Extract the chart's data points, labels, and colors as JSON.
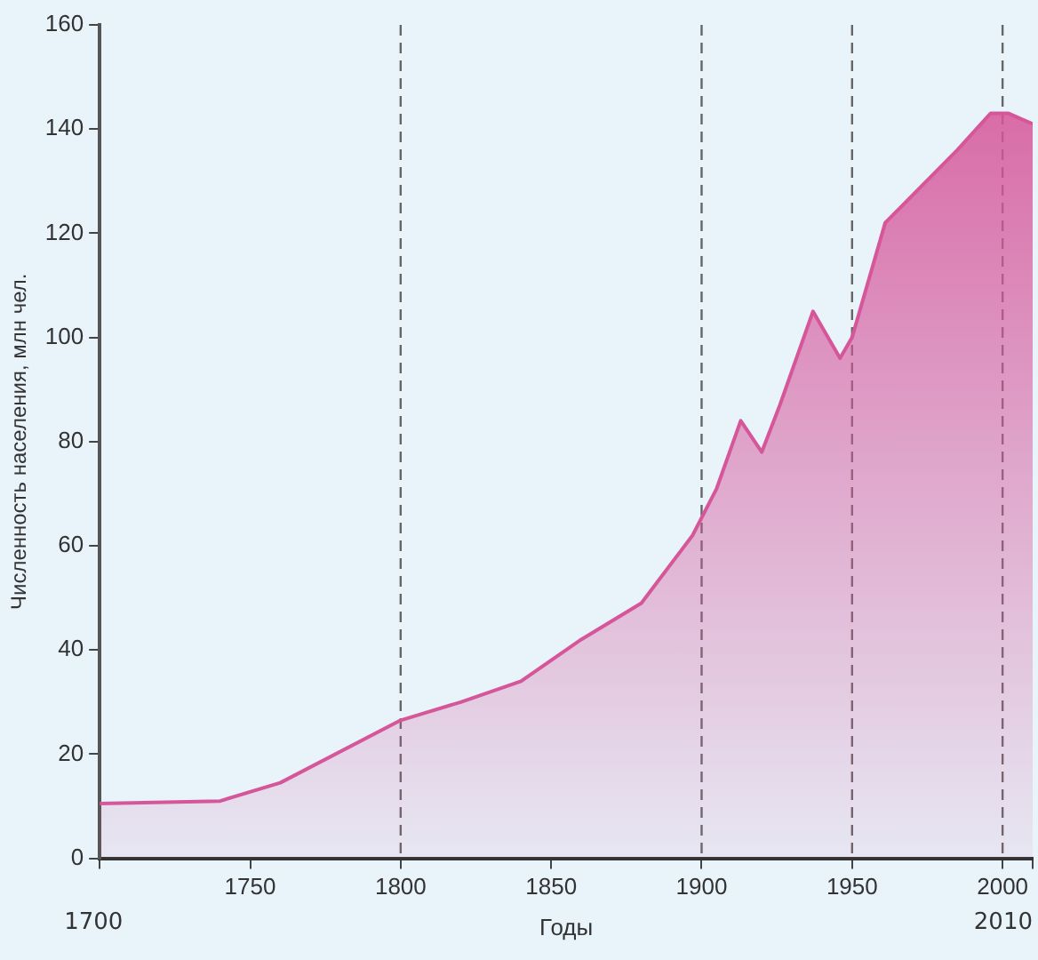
{
  "chart_data": {
    "type": "area",
    "xlabel": "Годы",
    "ylabel": "Численность населения, млн чел.",
    "x": [
      1700,
      1740,
      1760,
      1800,
      1820,
      1840,
      1860,
      1880,
      1897,
      1905,
      1913,
      1920,
      1926,
      1937,
      1946,
      1950,
      1961,
      1973,
      1985,
      1996,
      2002,
      2010
    ],
    "series": [
      {
        "color": "#d6569a",
        "values": [
          10.5,
          11,
          14.5,
          26.5,
          30,
          34,
          42,
          49,
          62,
          71,
          84,
          78,
          87,
          105,
          96,
          100,
          122,
          129,
          136,
          143,
          143,
          141
        ]
      }
    ],
    "xlim": [
      1700,
      2010
    ],
    "xticks": [
      {
        "value": 1700,
        "label": null
      },
      1750,
      1800,
      1850,
      1900,
      1950,
      2000,
      {
        "value": 2010,
        "label": null
      }
    ],
    "annotations": [
      "1700",
      "2010"
    ],
    "ylim": [
      0,
      160
    ],
    "yticks": [
      0,
      20,
      40,
      60,
      80,
      100,
      120,
      140,
      160
    ],
    "ref_lines": [
      {
        "axis": "x",
        "value": 1800,
        "color": "#666666",
        "line_style": "dashed"
      },
      {
        "axis": "x",
        "value": 1900,
        "color": "#666666",
        "line_style": "dashed"
      },
      {
        "axis": "x",
        "value": 1950,
        "color": "#666666",
        "line_style": "dashed"
      },
      {
        "axis": "x",
        "value": 2000,
        "color": "#666666",
        "line_style": "dashed"
      }
    ],
    "grid": false,
    "legend": false,
    "marker": "none",
    "line_style": "solid"
  }
}
